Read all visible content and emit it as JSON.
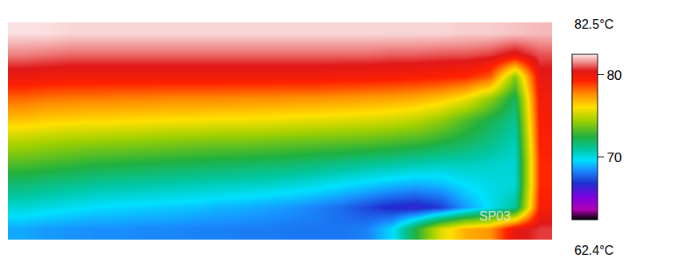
{
  "chart_data": {
    "type": "heatmap",
    "cells": [
      [
        82.4,
        82.4,
        82.3,
        82.3,
        82.3,
        82.3,
        82.3,
        82.3,
        82.3,
        82.3,
        82.3,
        82.3,
        82.3,
        82.3,
        82.3,
        82.3,
        82.3,
        82.3,
        82.2,
        82.2,
        82.1,
        82.0
      ],
      [
        81.4,
        81.3,
        81.2,
        81.2,
        81.2,
        81.2,
        81.2,
        81.2,
        81.2,
        81.2,
        81.2,
        81.2,
        81.2,
        81.2,
        81.2,
        81.1,
        81.1,
        81.0,
        81.0,
        80.8,
        80.2,
        81.0
      ],
      [
        80.0,
        79.9,
        79.8,
        79.8,
        79.8,
        79.8,
        79.8,
        79.8,
        79.8,
        79.8,
        79.8,
        79.8,
        79.8,
        79.7,
        79.7,
        79.6,
        79.5,
        79.4,
        79.2,
        78.4,
        74.0,
        80.2
      ],
      [
        78.2,
        78.0,
        77.9,
        77.9,
        77.8,
        77.8,
        77.7,
        77.7,
        77.7,
        77.6,
        77.6,
        77.5,
        77.5,
        77.4,
        77.3,
        77.2,
        77.0,
        76.6,
        75.8,
        74.2,
        72.0,
        79.8
      ],
      [
        76.6,
        76.4,
        76.3,
        76.2,
        76.2,
        76.1,
        76.0,
        76.0,
        75.9,
        75.9,
        75.8,
        75.7,
        75.6,
        75.5,
        75.4,
        75.2,
        74.9,
        74.2,
        73.2,
        72.2,
        71.2,
        79.6
      ],
      [
        74.8,
        74.6,
        74.4,
        74.3,
        74.2,
        74.1,
        74.0,
        73.9,
        73.8,
        73.8,
        73.7,
        73.6,
        73.5,
        73.4,
        73.3,
        73.1,
        72.9,
        72.5,
        72.0,
        71.4,
        70.6,
        79.4
      ],
      [
        73.2,
        73.0,
        72.8,
        72.6,
        72.5,
        72.4,
        72.3,
        72.2,
        72.1,
        72.0,
        71.9,
        71.8,
        71.6,
        71.4,
        71.2,
        71.0,
        70.8,
        70.6,
        70.6,
        70.4,
        70.2,
        79.2
      ],
      [
        71.6,
        71.4,
        71.2,
        71.0,
        70.9,
        70.8,
        70.7,
        70.6,
        70.5,
        70.4,
        70.3,
        70.1,
        69.9,
        69.6,
        69.3,
        69.0,
        68.8,
        69.0,
        69.6,
        70.0,
        70.2,
        79.2
      ],
      [
        70.2,
        70.0,
        69.8,
        69.6,
        69.5,
        69.4,
        69.3,
        69.2,
        69.0,
        68.9,
        68.7,
        68.5,
        68.2,
        67.8,
        67.2,
        66.6,
        66.4,
        67.0,
        68.6,
        69.8,
        71.0,
        79.6
      ],
      [
        68.8,
        68.6,
        68.5,
        68.4,
        68.4,
        68.3,
        68.3,
        68.2,
        68.2,
        68.1,
        68.1,
        68.0,
        68.0,
        68.0,
        68.2,
        69.5,
        72.5,
        75.5,
        77.0,
        77.5,
        80.2,
        80.8
      ]
    ],
    "colorbar": {
      "range": [
        62.4,
        82.5
      ],
      "ticks": [
        {
          "value": 62.4,
          "label": "62.4°C"
        },
        70,
        80,
        {
          "value": 82.5,
          "label": "82.5°C"
        }
      ]
    },
    "annotations": [
      "SP03"
    ],
    "tick_labels": false
  }
}
